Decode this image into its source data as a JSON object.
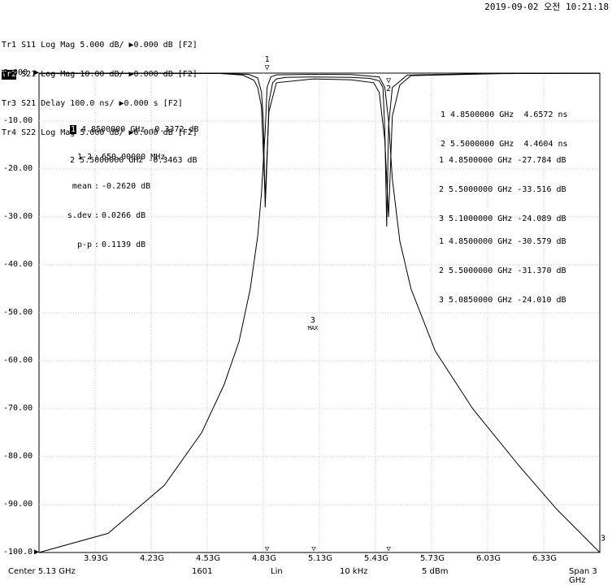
{
  "header": {
    "timestamp": "2019-09-02 오전 10:21:18"
  },
  "traces": [
    {
      "id": "Tr1",
      "text": " S11 Log Mag 5.000 dB/ ▶0.000 dB [F2]",
      "active": false
    },
    {
      "id": "Tr2",
      "text": " S21 Log Mag 10.00 dB/ ▶0.000 dB [F2]",
      "active": true
    },
    {
      "id": "Tr3",
      "text": " S21 Delay 100.0 ns/ ▶0.000 s [F2]",
      "active": false
    },
    {
      "id": "Tr4",
      "text": " S22 Log Mag 5.000 dB/ ▶0.000 dB [F2]",
      "active": false
    }
  ],
  "y_axis": {
    "ticks": [
      "0.000",
      "-10.00",
      "-20.00",
      "-30.00",
      "-40.00",
      "-50.00",
      "-60.00",
      "-70.00",
      "-80.00",
      "-90.00",
      "-100.0"
    ],
    "ref_marker": "▶"
  },
  "x_axis": {
    "ticks": [
      "3.93G",
      "4.23G",
      "4.53G",
      "4.83G",
      "5.13G",
      "5.43G",
      "5.73G",
      "6.03G",
      "6.33G"
    ]
  },
  "footer": {
    "center": "Center 5.13 GHz",
    "points": "1601",
    "sweep": "Lin",
    "ifbw": "10 kHz",
    "power": "5 dBm",
    "span": "Span 3 GHz"
  },
  "markers_s21": {
    "rows": [
      {
        "num": "1",
        "text": " 4.8500000 GHz -0.3372 dB",
        "active": true
      },
      {
        "num": "2",
        "text": " 5.5000000 GHz -0.3463 dB",
        "active": false
      }
    ],
    "stats": [
      {
        "key": "1-2",
        "value": "650.00000 MHz"
      },
      {
        "key": "mean",
        "value": "-0.2620 dB"
      },
      {
        "key": "s.dev",
        "value": "0.0266 dB"
      },
      {
        "key": "p-p",
        "value": "0.1139 dB"
      }
    ]
  },
  "markers_delay": [
    "1 4.8500000 GHz  4.6572 ns",
    "2 5.5000000 GHz  4.4604 ns"
  ],
  "markers_s11": [
    "1 4.8500000 GHz -27.784 dB",
    "2 5.5000000 GHz -33.516 dB",
    "3 5.1000000 GHz -24.089 dB"
  ],
  "markers_s22": [
    "1 4.8500000 GHz -30.579 dB",
    "2 5.5000000 GHz -31.370 dB",
    "3 5.0850000 GHz -24.010 dB"
  ],
  "trace_markers": {
    "m1": "1",
    "m2": "2",
    "m3": "3",
    "max_label": "MAX",
    "right_edge": "3"
  },
  "chart_data": {
    "type": "line",
    "title": "",
    "xlabel": "",
    "ylabel": "",
    "xlim_ghz": [
      3.63,
      6.63
    ],
    "ylim": [
      -100,
      0
    ],
    "grid": true,
    "series": [
      {
        "x": [
          3.63,
          4.0,
          4.3,
          4.5,
          4.62,
          4.7,
          4.76,
          4.8,
          4.82,
          4.84,
          4.85,
          4.87,
          4.9,
          5.1,
          5.3,
          5.45,
          5.48,
          5.5,
          5.52,
          5.56,
          5.62,
          5.75,
          5.95,
          6.2,
          6.4,
          6.63
        ],
        "y": [
          -100,
          -96,
          -86,
          -75,
          -65,
          -56,
          -45,
          -34,
          -25,
          -12,
          -3,
          -0.8,
          -0.35,
          -0.26,
          -0.3,
          -0.8,
          -3,
          -10,
          -22,
          -35,
          -45,
          -58,
          -70,
          -82,
          -91,
          -100
        ]
      },
      {
        "x": [
          3.63,
          4.2,
          4.6,
          4.75,
          4.8,
          4.82,
          4.83,
          4.84,
          4.85,
          4.86,
          4.88,
          4.9,
          4.95,
          5.1,
          5.3,
          5.4,
          5.45,
          5.47,
          5.48,
          5.49,
          5.5,
          5.52,
          5.6,
          6.0,
          6.63
        ],
        "y": [
          -0.1,
          -0.05,
          -0.08,
          -0.25,
          -1.0,
          -4,
          -10,
          -28,
          -18,
          -6,
          -2,
          -1.2,
          -0.9,
          -0.8,
          -0.9,
          -1.1,
          -1.6,
          -3,
          -12,
          -32,
          -11,
          -3,
          -0.4,
          -0.1,
          -0.05
        ]
      },
      {
        "x": [
          3.63,
          4.2,
          4.6,
          4.72,
          4.78,
          4.8,
          4.82,
          4.84,
          4.86,
          4.9,
          5.1,
          5.3,
          5.42,
          5.45,
          5.48,
          5.5,
          5.52,
          5.56,
          5.62,
          6.1,
          6.63
        ],
        "y": [
          -0.1,
          -0.05,
          -0.08,
          -0.4,
          -1.5,
          -3,
          -7,
          -26,
          -8,
          -2,
          -1.2,
          -1.4,
          -2,
          -4,
          -14,
          -30,
          -9,
          -2.5,
          -0.5,
          -0.1,
          -0.05
        ]
      }
    ]
  }
}
